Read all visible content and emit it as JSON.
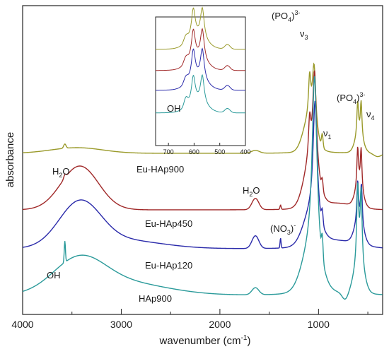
{
  "chart_data": {
    "type": "line",
    "xlabel": "wavenumber (cm",
    "xlabel_sup": "-1",
    "xlabel_close": ")",
    "ylabel": "absorbance",
    "x_reversed": true,
    "xlim": [
      4000,
      350
    ],
    "xticks": [
      4000,
      3000,
      2000,
      1000
    ],
    "series": [
      {
        "name": "Eu-HAp900",
        "color": "#9a9a2a",
        "baseline": 217,
        "shape": "hap900"
      },
      {
        "name": "Eu-HAp450",
        "color": "#a02828",
        "baseline": 297,
        "shape": "hap450"
      },
      {
        "name": "Eu-HAp120",
        "color": "#2a2aaa",
        "baseline": 352,
        "shape": "hap120"
      },
      {
        "name": "HAp900",
        "color": "#2a9a9a",
        "baseline": 418,
        "shape": "happlain"
      }
    ],
    "annotations": {
      "po4_v3_label": "(PO",
      "po4_v3_sub": "4",
      "po4_v3_close": ")",
      "po4_v3_sup": "3-",
      "v3": "ν",
      "v3_sub": "3",
      "po4_v4_label": "(PO",
      "po4_v4_sub": "4",
      "po4_v4_close": ")",
      "po4_v4_sup": "3-",
      "v4": "ν",
      "v4_sub": "4",
      "v1": "ν",
      "v1_sub": "1",
      "h2o_a": "H",
      "h2o_a_sub": "2",
      "h2o_a_end": "O",
      "h2o_b": "H",
      "h2o_b_sub": "2",
      "h2o_b_end": "O",
      "no3": "(NO",
      "no3_sub": "3",
      "no3_close": ")",
      "no3_sup": "-",
      "oh": "OH",
      "inset_oh": "OH"
    },
    "inset": {
      "xlim": [
        750,
        400
      ],
      "xticks": [
        700,
        600,
        500,
        400
      ]
    }
  }
}
